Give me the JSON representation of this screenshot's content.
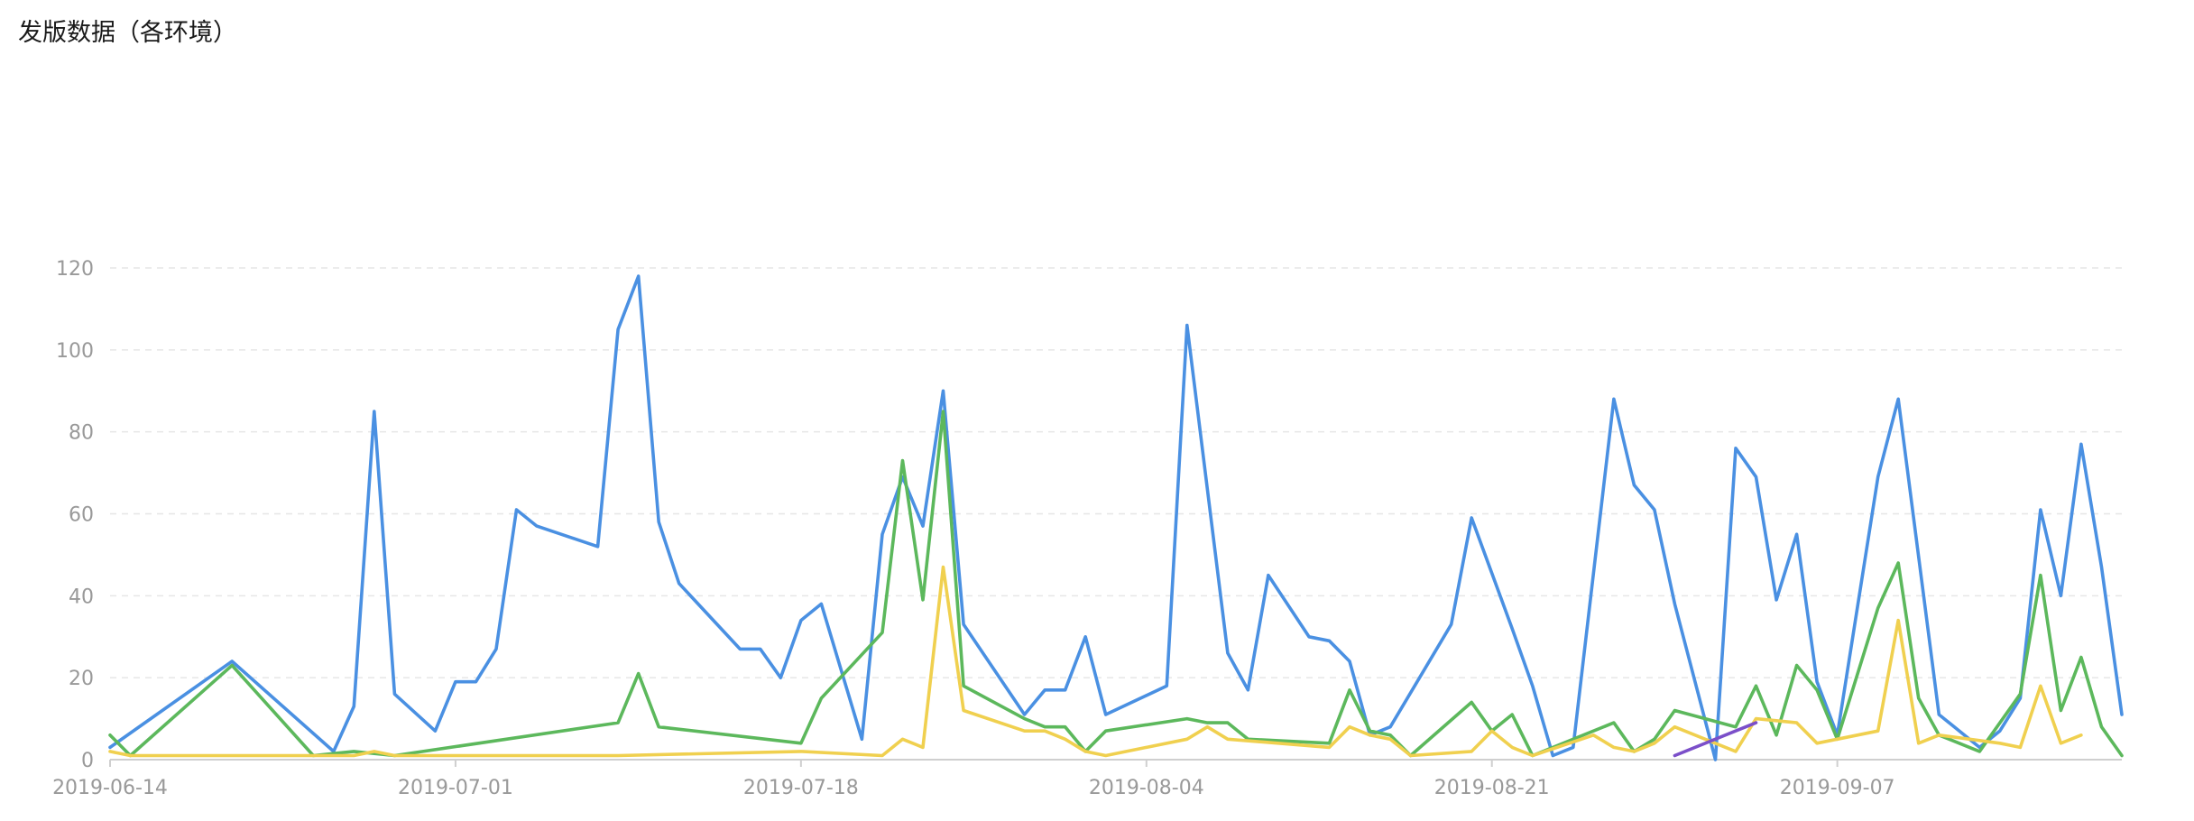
{
  "title": "发版数据（各环境）",
  "chart_data": {
    "type": "line",
    "title": "发版数据（各环境）",
    "xlabel": "",
    "ylabel": "",
    "ylim": [
      0,
      120
    ],
    "yticks": [
      0,
      20,
      40,
      60,
      80,
      100,
      120
    ],
    "xticks": [
      "2019-06-14",
      "2019-07-01",
      "2019-07-18",
      "2019-08-04",
      "2019-08-21",
      "2019-09-07"
    ],
    "x_start": "2019-06-14",
    "x_end": "2019-09-21",
    "grid": true,
    "legend": "none",
    "series": [
      {
        "color": "#4a90e2",
        "points": [
          [
            "2019-06-14",
            3
          ],
          [
            "2019-06-20",
            24
          ],
          [
            "2019-06-25",
            2
          ],
          [
            "2019-06-26",
            13
          ],
          [
            "2019-06-27",
            85
          ],
          [
            "2019-06-28",
            16
          ],
          [
            "2019-06-30",
            7
          ],
          [
            "2019-07-01",
            19
          ],
          [
            "2019-07-02",
            19
          ],
          [
            "2019-07-03",
            27
          ],
          [
            "2019-07-04",
            61
          ],
          [
            "2019-07-05",
            57
          ],
          [
            "2019-07-08",
            52
          ],
          [
            "2019-07-09",
            105
          ],
          [
            "2019-07-10",
            118
          ],
          [
            "2019-07-11",
            58
          ],
          [
            "2019-07-12",
            43
          ],
          [
            "2019-07-15",
            27
          ],
          [
            "2019-07-16",
            27
          ],
          [
            "2019-07-17",
            20
          ],
          [
            "2019-07-18",
            34
          ],
          [
            "2019-07-19",
            38
          ],
          [
            "2019-07-21",
            5
          ],
          [
            "2019-07-22",
            55
          ],
          [
            "2019-07-23",
            69
          ],
          [
            "2019-07-24",
            57
          ],
          [
            "2019-07-25",
            90
          ],
          [
            "2019-07-26",
            33
          ],
          [
            "2019-07-29",
            11
          ],
          [
            "2019-07-30",
            17
          ],
          [
            "2019-07-31",
            17
          ],
          [
            "2019-08-01",
            30
          ],
          [
            "2019-08-02",
            11
          ],
          [
            "2019-08-05",
            18
          ],
          [
            "2019-08-06",
            106
          ],
          [
            "2019-08-08",
            26
          ],
          [
            "2019-08-09",
            17
          ],
          [
            "2019-08-10",
            45
          ],
          [
            "2019-08-12",
            30
          ],
          [
            "2019-08-13",
            29
          ],
          [
            "2019-08-14",
            24
          ],
          [
            "2019-08-15",
            6
          ],
          [
            "2019-08-16",
            8
          ],
          [
            "2019-08-19",
            33
          ],
          [
            "2019-08-20",
            59
          ],
          [
            "2019-08-22",
            32
          ],
          [
            "2019-08-23",
            18
          ],
          [
            "2019-08-24",
            1
          ],
          [
            "2019-08-25",
            3
          ],
          [
            "2019-08-27",
            88
          ],
          [
            "2019-08-28",
            67
          ],
          [
            "2019-08-29",
            61
          ],
          [
            "2019-08-30",
            38
          ],
          [
            "2019-09-01",
            0
          ],
          [
            "2019-09-02",
            76
          ],
          [
            "2019-09-03",
            69
          ],
          [
            "2019-09-04",
            39
          ],
          [
            "2019-09-05",
            55
          ],
          [
            "2019-09-06",
            19
          ],
          [
            "2019-09-07",
            6
          ],
          [
            "2019-09-09",
            69
          ],
          [
            "2019-09-10",
            88
          ],
          [
            "2019-09-12",
            11
          ],
          [
            "2019-09-14",
            3
          ],
          [
            "2019-09-15",
            7
          ],
          [
            "2019-09-16",
            15
          ],
          [
            "2019-09-17",
            61
          ],
          [
            "2019-09-18",
            40
          ],
          [
            "2019-09-19",
            77
          ],
          [
            "2019-09-20",
            47
          ],
          [
            "2019-09-21",
            11
          ]
        ]
      },
      {
        "color": "#5cb85c",
        "points": [
          [
            "2019-06-14",
            6
          ],
          [
            "2019-06-15",
            1
          ],
          [
            "2019-06-20",
            23
          ],
          [
            "2019-06-24",
            1
          ],
          [
            "2019-06-26",
            2
          ],
          [
            "2019-06-28",
            1
          ],
          [
            "2019-07-09",
            9
          ],
          [
            "2019-07-10",
            21
          ],
          [
            "2019-07-11",
            8
          ],
          [
            "2019-07-18",
            4
          ],
          [
            "2019-07-19",
            15
          ],
          [
            "2019-07-22",
            31
          ],
          [
            "2019-07-23",
            73
          ],
          [
            "2019-07-24",
            39
          ],
          [
            "2019-07-25",
            85
          ],
          [
            "2019-07-26",
            18
          ],
          [
            "2019-07-29",
            10
          ],
          [
            "2019-07-30",
            8
          ],
          [
            "2019-07-31",
            8
          ],
          [
            "2019-08-01",
            2
          ],
          [
            "2019-08-02",
            7
          ],
          [
            "2019-08-06",
            10
          ],
          [
            "2019-08-07",
            9
          ],
          [
            "2019-08-08",
            9
          ],
          [
            "2019-08-09",
            5
          ],
          [
            "2019-08-13",
            4
          ],
          [
            "2019-08-14",
            17
          ],
          [
            "2019-08-15",
            7
          ],
          [
            "2019-08-16",
            6
          ],
          [
            "2019-08-17",
            1
          ],
          [
            "2019-08-20",
            14
          ],
          [
            "2019-08-21",
            7
          ],
          [
            "2019-08-22",
            11
          ],
          [
            "2019-08-23",
            1
          ],
          [
            "2019-08-27",
            9
          ],
          [
            "2019-08-28",
            2
          ],
          [
            "2019-08-29",
            5
          ],
          [
            "2019-08-30",
            12
          ],
          [
            "2019-09-02",
            8
          ],
          [
            "2019-09-03",
            18
          ],
          [
            "2019-09-04",
            6
          ],
          [
            "2019-09-05",
            23
          ],
          [
            "2019-09-06",
            17
          ],
          [
            "2019-09-07",
            5
          ],
          [
            "2019-09-09",
            37
          ],
          [
            "2019-09-10",
            48
          ],
          [
            "2019-09-11",
            15
          ],
          [
            "2019-09-12",
            6
          ],
          [
            "2019-09-14",
            2
          ],
          [
            "2019-09-16",
            16
          ],
          [
            "2019-09-17",
            45
          ],
          [
            "2019-09-18",
            12
          ],
          [
            "2019-09-19",
            25
          ],
          [
            "2019-09-20",
            8
          ],
          [
            "2019-09-21",
            1
          ]
        ]
      },
      {
        "color": "#f0d04f",
        "points": [
          [
            "2019-06-14",
            2
          ],
          [
            "2019-06-15",
            1
          ],
          [
            "2019-06-26",
            1
          ],
          [
            "2019-06-27",
            2
          ],
          [
            "2019-06-28",
            1
          ],
          [
            "2019-07-09",
            1
          ],
          [
            "2019-07-18",
            2
          ],
          [
            "2019-07-22",
            1
          ],
          [
            "2019-07-23",
            5
          ],
          [
            "2019-07-24",
            3
          ],
          [
            "2019-07-25",
            47
          ],
          [
            "2019-07-26",
            12
          ],
          [
            "2019-07-29",
            7
          ],
          [
            "2019-07-30",
            7
          ],
          [
            "2019-07-31",
            5
          ],
          [
            "2019-08-01",
            2
          ],
          [
            "2019-08-02",
            1
          ],
          [
            "2019-08-06",
            5
          ],
          [
            "2019-08-07",
            8
          ],
          [
            "2019-08-08",
            5
          ],
          [
            "2019-08-13",
            3
          ],
          [
            "2019-08-14",
            8
          ],
          [
            "2019-08-15",
            6
          ],
          [
            "2019-08-16",
            5
          ],
          [
            "2019-08-17",
            1
          ],
          [
            "2019-08-20",
            2
          ],
          [
            "2019-08-21",
            7
          ],
          [
            "2019-08-22",
            3
          ],
          [
            "2019-08-23",
            1
          ],
          [
            "2019-08-26",
            6
          ],
          [
            "2019-08-27",
            3
          ],
          [
            "2019-08-28",
            2
          ],
          [
            "2019-08-29",
            4
          ],
          [
            "2019-08-30",
            8
          ],
          [
            "2019-09-02",
            2
          ],
          [
            "2019-09-03",
            10
          ],
          [
            "2019-09-05",
            9
          ],
          [
            "2019-09-06",
            4
          ],
          [
            "2019-09-07",
            5
          ],
          [
            "2019-09-09",
            7
          ],
          [
            "2019-09-10",
            34
          ],
          [
            "2019-09-11",
            4
          ],
          [
            "2019-09-12",
            6
          ],
          [
            "2019-09-15",
            4
          ],
          [
            "2019-09-16",
            3
          ],
          [
            "2019-09-17",
            18
          ],
          [
            "2019-09-18",
            4
          ],
          [
            "2019-09-19",
            6
          ]
        ]
      },
      {
        "color": "#7b4fc9",
        "points": [
          [
            "2019-08-30",
            1
          ],
          [
            "2019-09-03",
            9
          ]
        ]
      }
    ]
  }
}
